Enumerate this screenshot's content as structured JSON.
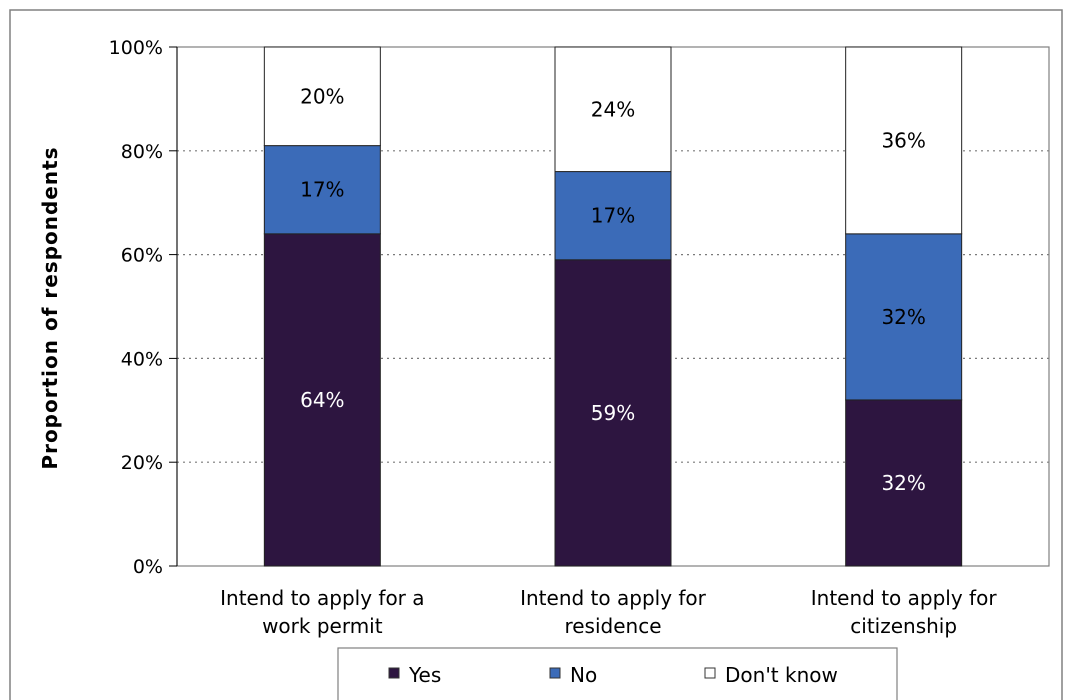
{
  "chart_data": {
    "type": "bar",
    "stacked": true,
    "categories": [
      [
        "Intend to apply for a",
        "work permit"
      ],
      [
        "Intend to apply for",
        "residence"
      ],
      [
        "Intend to apply for",
        "citizenship"
      ]
    ],
    "series": [
      {
        "name": "Yes",
        "values": [
          64,
          59,
          32
        ],
        "labels": [
          "64%",
          "59%",
          "32%"
        ],
        "color": "#2d1540",
        "label_color": "#ffffff"
      },
      {
        "name": "No",
        "values": [
          17,
          17,
          32
        ],
        "labels": [
          "17%",
          "17%",
          "32%"
        ],
        "color": "#3b6bb8",
        "label_color": "#000000"
      },
      {
        "name": "Don't know",
        "values": [
          20,
          24,
          36
        ],
        "labels": [
          "20%",
          "24%",
          "36%"
        ],
        "color": "#ffffff",
        "label_color": "#000000"
      }
    ],
    "ylabel": "Proportion of respondents",
    "xlabel": "",
    "ylim": [
      0,
      100
    ],
    "yticks": [
      "0%",
      "20%",
      "40%",
      "60%",
      "80%",
      "100%"
    ],
    "grid": "horizontal-dotted",
    "legend_position": "bottom"
  }
}
